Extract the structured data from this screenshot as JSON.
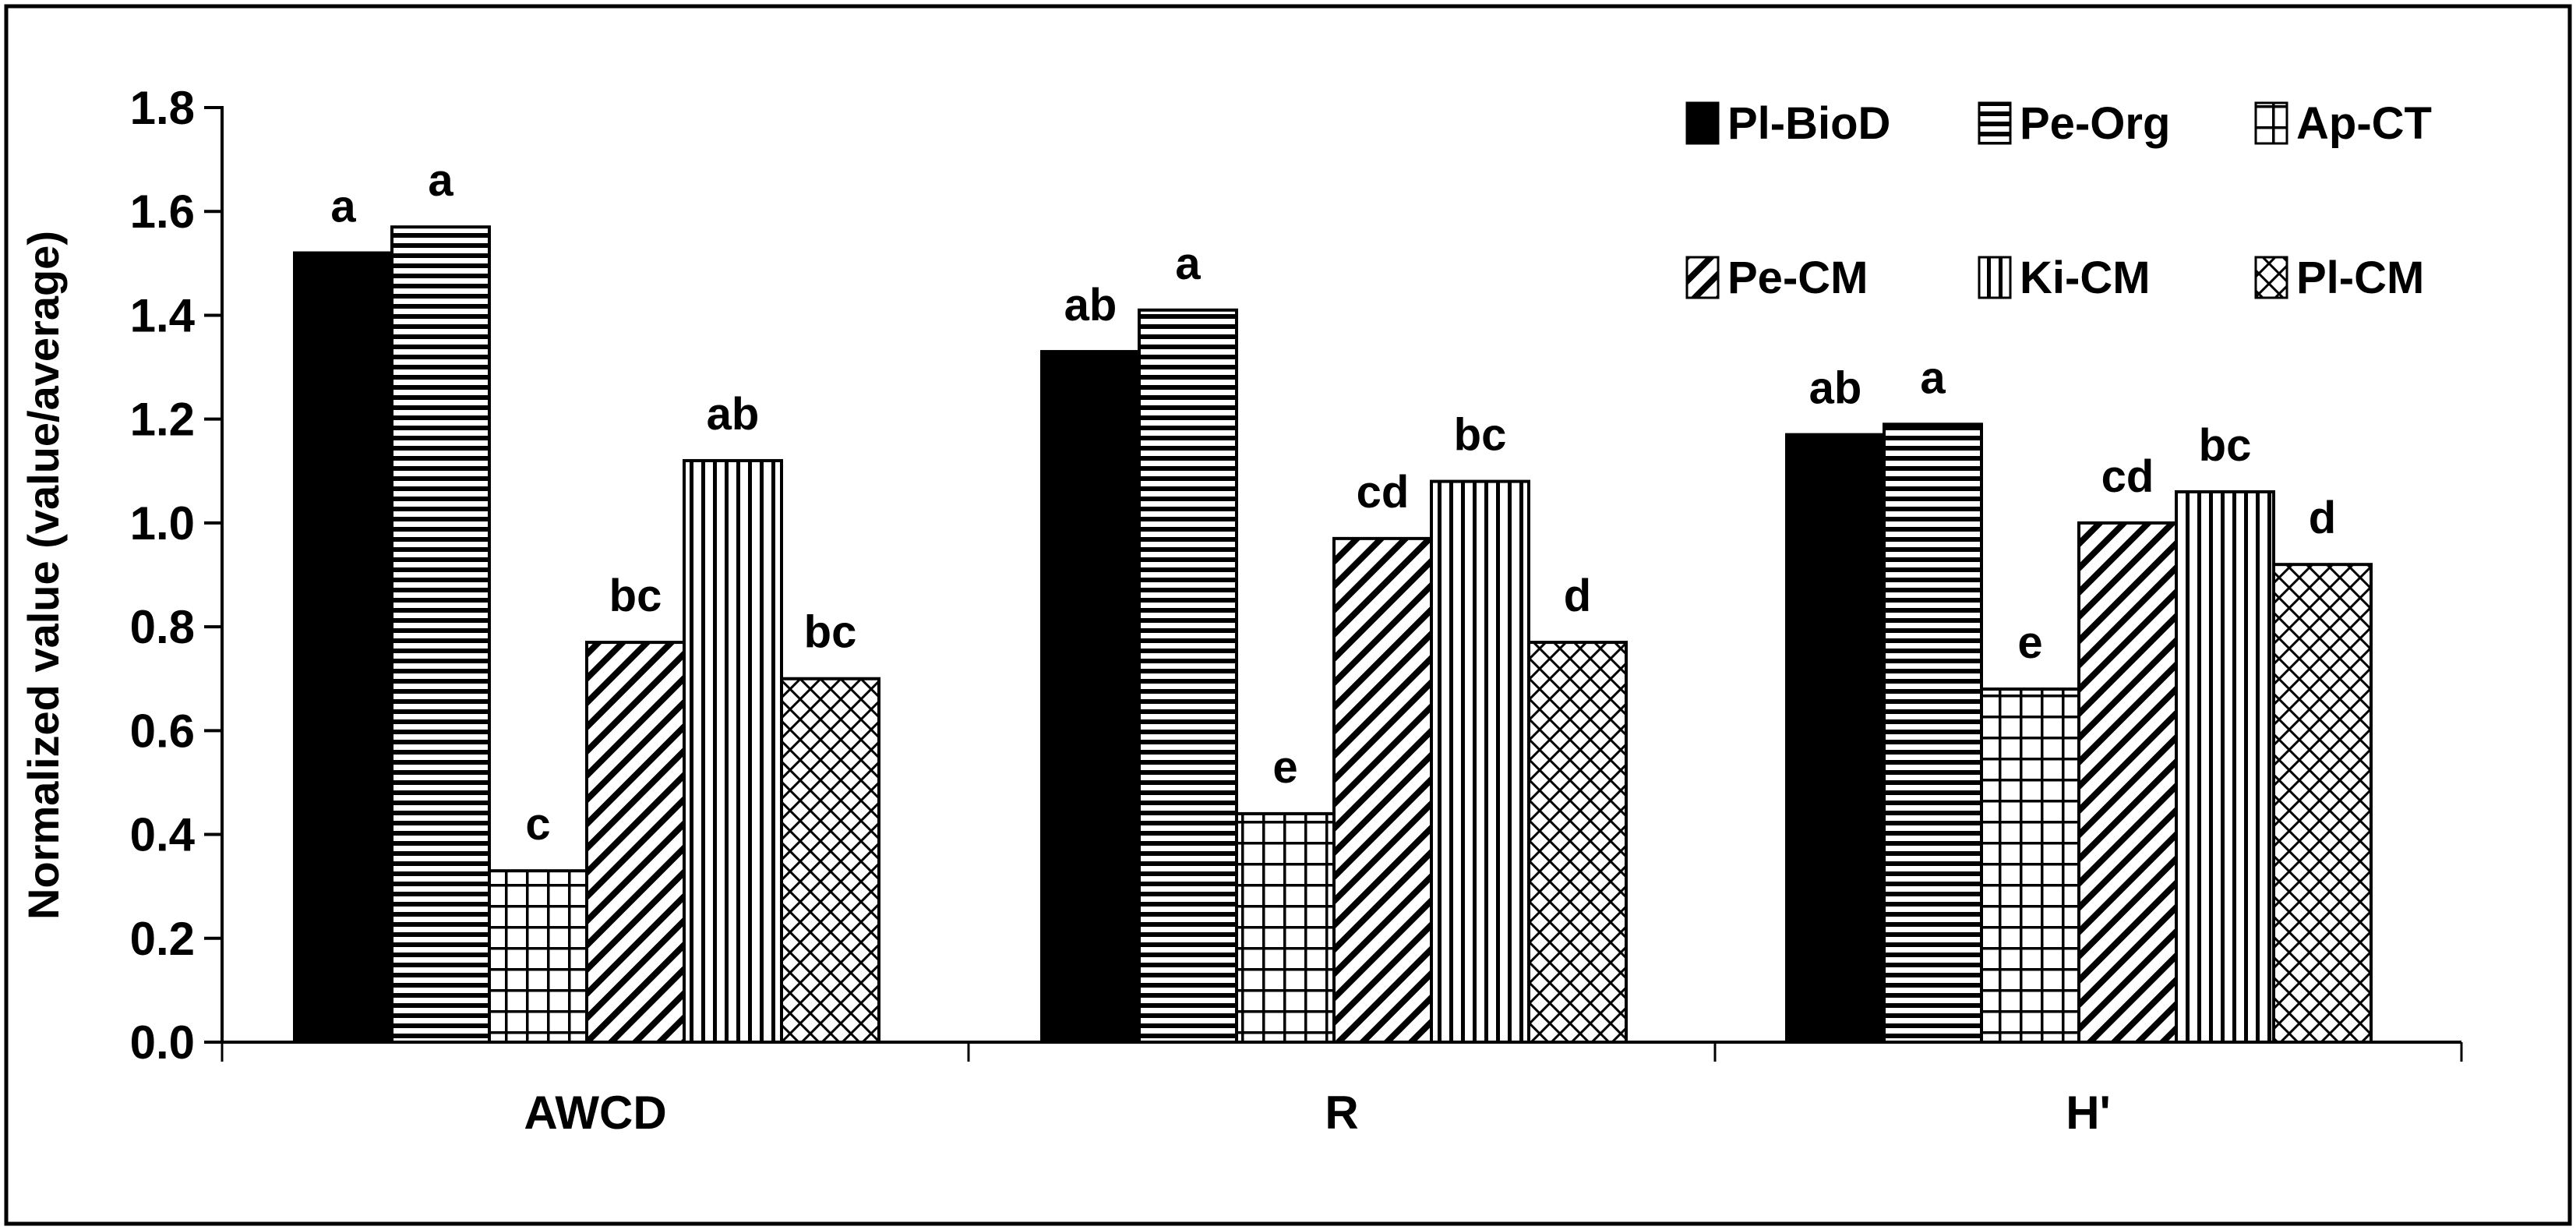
{
  "figure": {
    "background_color": "#ffffff",
    "border_color": "#000000"
  },
  "chart_data": {
    "type": "bar",
    "title": "",
    "xlabel": "",
    "ylabel": "Normalized value (value/average)",
    "ylim": [
      0.0,
      1.8
    ],
    "ytick_step": 0.2,
    "yticks": [
      "0.0",
      "0.2",
      "0.4",
      "0.6",
      "0.8",
      "1.0",
      "1.2",
      "1.4",
      "1.6",
      "1.8"
    ],
    "grid": false,
    "legend_position": "top-right",
    "legend_rows": [
      [
        "Pl-BioD",
        "Pe-Org",
        "Ap-CT"
      ],
      [
        "Pe-CM",
        "Ki-CM",
        "Pl-CM"
      ]
    ],
    "categories": [
      "AWCD",
      "R",
      "H'"
    ],
    "series": [
      {
        "name": "Pl-BioD",
        "pattern": "solid-black",
        "values": [
          1.52,
          1.33,
          1.17
        ],
        "letters": [
          "a",
          "ab",
          "ab"
        ]
      },
      {
        "name": "Pe-Org",
        "pattern": "horizontal-stripes",
        "values": [
          1.57,
          1.41,
          1.19
        ],
        "letters": [
          "a",
          "a",
          "a"
        ]
      },
      {
        "name": "Ap-CT",
        "pattern": "small-grid",
        "values": [
          0.33,
          0.44,
          0.68
        ],
        "letters": [
          "c",
          "e",
          "e"
        ]
      },
      {
        "name": "Pe-CM",
        "pattern": "diagonal-stripes",
        "values": [
          0.77,
          0.97,
          1.0
        ],
        "letters": [
          "bc",
          "cd",
          "cd"
        ]
      },
      {
        "name": "Ki-CM",
        "pattern": "vertical-stripes",
        "values": [
          1.12,
          1.08,
          1.06
        ],
        "letters": [
          "ab",
          "bc",
          "bc"
        ]
      },
      {
        "name": "Pl-CM",
        "pattern": "diamond-crosshatch",
        "values": [
          0.7,
          0.77,
          0.92
        ],
        "letters": [
          "bc",
          "d",
          "d"
        ]
      }
    ],
    "bar_outline_color": "#000000",
    "text_color": "#000000"
  }
}
